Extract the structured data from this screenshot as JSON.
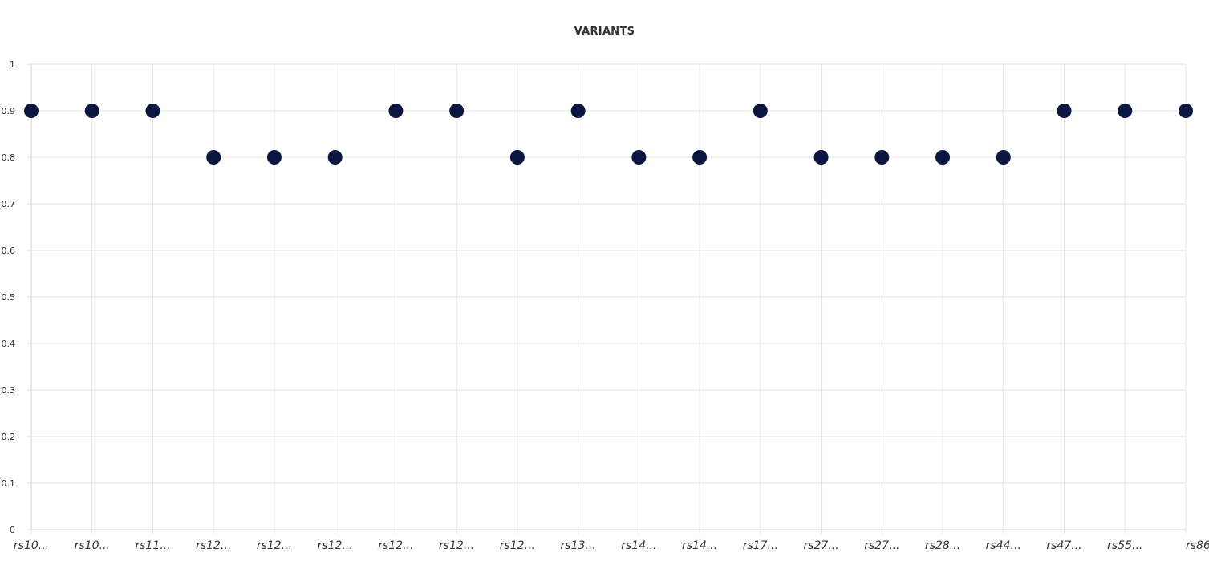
{
  "chart_data": {
    "type": "scatter",
    "title": "VARIANTS",
    "xlabel": "",
    "ylabel": "",
    "ylim": [
      0,
      1
    ],
    "yticks": [
      "0",
      "0.1",
      "0.2",
      "0.3",
      "0.4",
      "0.5",
      "0.6",
      "0.7",
      "0.8",
      "0.9",
      "1"
    ],
    "grid": true,
    "categories": [
      "rs10...",
      "rs10...",
      "rs11...",
      "rs12...",
      "rs12...",
      "rs12...",
      "rs12...",
      "rs12...",
      "rs12...",
      "rs13...",
      "rs14...",
      "rs14...",
      "rs17...",
      "rs27...",
      "rs27...",
      "rs28...",
      "rs44...",
      "rs47...",
      "rs55...",
      "rs86"
    ],
    "values": [
      0.9,
      0.9,
      0.9,
      0.8,
      0.8,
      0.8,
      0.9,
      0.9,
      0.8,
      0.9,
      0.8,
      0.8,
      0.9,
      0.8,
      0.8,
      0.8,
      0.8,
      0.9,
      0.9,
      0.9
    ],
    "marker_color": "#0b1640"
  }
}
